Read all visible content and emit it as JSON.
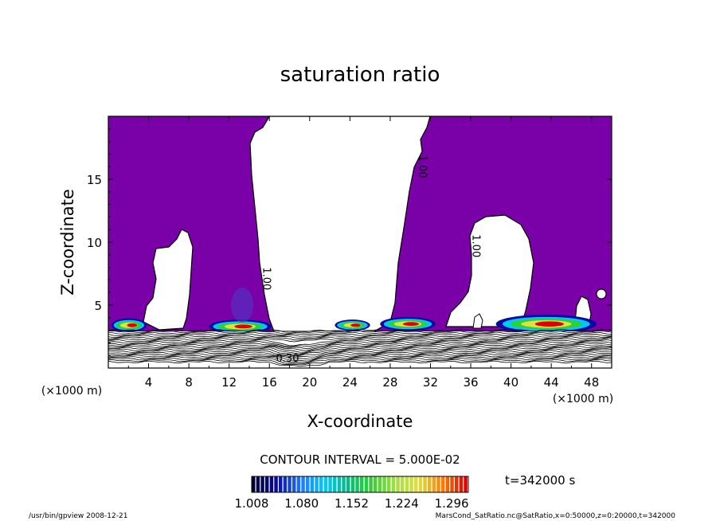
{
  "chart_data": {
    "type": "heatmap",
    "title": "saturation ratio",
    "xlabel": "X-coordinate",
    "ylabel": "Z-coordinate",
    "x_unit_label": "(×1000 m)",
    "z_unit_label": "(×1000 m)",
    "xlim": [
      0,
      50
    ],
    "ylim": [
      0,
      20
    ],
    "x_ticks": [
      4,
      8,
      12,
      16,
      20,
      24,
      28,
      32,
      36,
      40,
      44,
      48
    ],
    "y_ticks": [
      5,
      10,
      15
    ],
    "contour_interval_label": "CONTOUR INTERVAL = 5.000E-02",
    "time_label": "t=342000 s",
    "contour_labels": [
      {
        "text": "1.00",
        "x": 30.9,
        "z": 16.0
      },
      {
        "text": "1.00",
        "x": 36.2,
        "z": 9.7
      },
      {
        "text": "1.00",
        "x": 15.4,
        "z": 7.1
      },
      {
        "text": "0.30",
        "x": 17.8,
        "z": 0.5
      }
    ],
    "colorbar": {
      "ticks": [
        "1.008",
        "1.080",
        "1.152",
        "1.224",
        "1.296"
      ],
      "min": 1.008,
      "max": 1.32,
      "colors": [
        "#000033",
        "#0a0aa0",
        "#1e78ff",
        "#00c8ff",
        "#00c080",
        "#30d030",
        "#a0e040",
        "#e0e040",
        "#ff8000",
        "#e00000"
      ]
    },
    "colors": {
      "supersaturated_fill": "#7a00a8",
      "contour_line": "#000000"
    },
    "clear_regions_description": "Unsaturated (white) regions centered near x=18-24, x=9, x=38-42",
    "footer_left": "/usr/bin/gpview   2008-12-21",
    "footer_right": "MarsCond_SatRatio.nc@SatRatio,x=0:50000,z=0:20000,t=342000"
  }
}
